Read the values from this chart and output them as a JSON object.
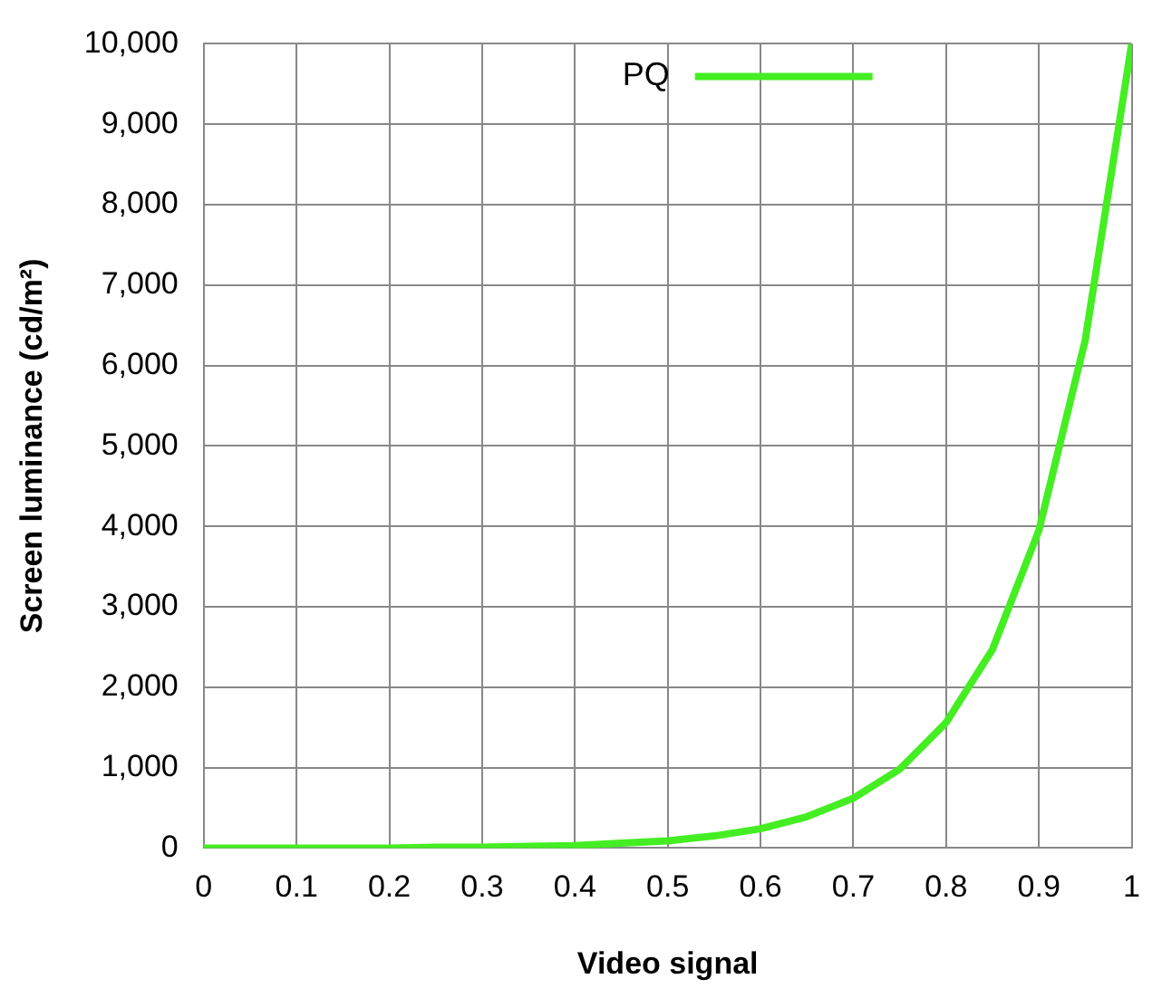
{
  "chart_data": {
    "type": "line",
    "xlabel": "Video signal",
    "ylabel": "Screen luminance (cd/m²)",
    "x": [
      0,
      0.05,
      0.1,
      0.15,
      0.2,
      0.25,
      0.3,
      0.35,
      0.4,
      0.45,
      0.5,
      0.55,
      0.6,
      0.65,
      0.7,
      0.75,
      0.8,
      0.85,
      0.9,
      0.95,
      1
    ],
    "series": [
      {
        "name": "PQ",
        "color": "#44ee22",
        "values": [
          0,
          0,
          0,
          0,
          0,
          10,
          10,
          20,
          30,
          60,
          90,
          150,
          240,
          390,
          620,
          980,
          1560,
          2470,
          3950,
          6320,
          10000
        ]
      }
    ],
    "xlim": [
      0,
      1
    ],
    "xticks": [
      0,
      0.1,
      0.2,
      0.3,
      0.4,
      0.5,
      0.6,
      0.7,
      0.8,
      0.9,
      1
    ],
    "ylim": [
      0,
      10000
    ],
    "yticks": [
      {
        "value": 0,
        "label": "0"
      },
      {
        "value": 1000,
        "label": "1,000"
      },
      {
        "value": 2000,
        "label": "2,000"
      },
      {
        "value": 3000,
        "label": "3,000"
      },
      {
        "value": 4000,
        "label": "4,000"
      },
      {
        "value": 5000,
        "label": "5,000"
      },
      {
        "value": 6000,
        "label": "6,000"
      },
      {
        "value": 7000,
        "label": "7,000"
      },
      {
        "value": 8000,
        "label": "8,000"
      },
      {
        "value": 9000,
        "label": "9,000"
      },
      {
        "value": 10000,
        "label": "10,000"
      }
    ],
    "grid": true,
    "legend": "top",
    "marker": "none",
    "line_style": "solid"
  }
}
